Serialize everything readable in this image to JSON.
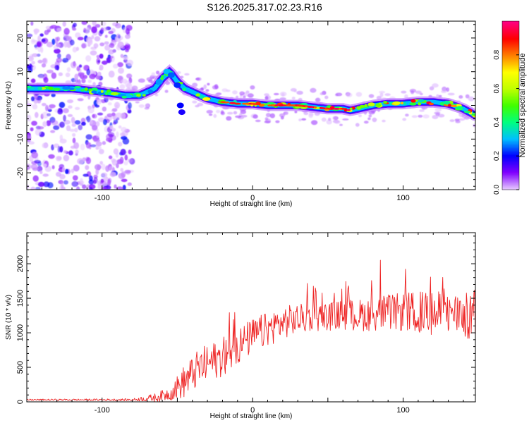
{
  "page_title": "S126.2025.317.02.23.R16",
  "chart_data": [
    {
      "type": "heatmap",
      "title": "S126.2025.317.02.23.R16",
      "xlabel": "Height of straight line (km)",
      "ylabel": "Frequency (Hz)",
      "xlim": [
        -150,
        148
      ],
      "ylim": [
        -25,
        25
      ],
      "xticks": [
        "-100",
        "0",
        "100"
      ],
      "xtick_values": [
        -100,
        0,
        100
      ],
      "yticks": [
        "20",
        "10",
        "0",
        "-10",
        "-20"
      ],
      "ytick_values": [
        20,
        10,
        0,
        -10,
        -20
      ],
      "colorbar": {
        "label": "Normalized spectral amplitude",
        "ticks": [
          "0.0",
          "0.2",
          "0.4",
          "0.6",
          "0.8"
        ],
        "tick_values": [
          0.0,
          0.2,
          0.4,
          0.6,
          0.8
        ],
        "range": [
          0,
          1
        ],
        "colormap": [
          "#e6c8ff",
          "#8000ff",
          "#0000ff",
          "#00bfff",
          "#00ff80",
          "#40ff00",
          "#c0ff00",
          "#ffff00",
          "#ff8000",
          "#ff0000",
          "#ff0080"
        ]
      },
      "ridge": {
        "x": [
          -150,
          -120,
          -100,
          -85,
          -75,
          -65,
          -60,
          -55,
          -50,
          -45,
          -40,
          -35,
          -30,
          -20,
          -10,
          0,
          10,
          20,
          30,
          40,
          50,
          60,
          65,
          70,
          80,
          90,
          100,
          110,
          120,
          130,
          140,
          148
        ],
        "freq": [
          5,
          5,
          4,
          3,
          3,
          5,
          8,
          10,
          7,
          5,
          4,
          3,
          2,
          1,
          0.5,
          0.5,
          0,
          0,
          0,
          -0.5,
          -1,
          -1,
          -1.5,
          -1,
          0,
          0.5,
          0.5,
          1,
          1,
          0.5,
          -1,
          -3
        ]
      },
      "noise_region_x": [
        -150,
        -80
      ]
    },
    {
      "type": "line",
      "xlabel": "Height of straight line (km)",
      "ylabel": "SNR (10 * v/v)",
      "xlim": [
        -150,
        148
      ],
      "ylim": [
        0,
        2450
      ],
      "xticks": [
        "-100",
        "0",
        "100"
      ],
      "xtick_values": [
        -100,
        0,
        100
      ],
      "yticks": [
        "0",
        "500",
        "1000",
        "1500",
        "2000"
      ],
      "ytick_values": [
        0,
        500,
        1000,
        1500,
        2000
      ],
      "color": "#ee2222",
      "trend": {
        "x": [
          -150,
          -80,
          -65,
          -55,
          -45,
          -35,
          -20,
          -10,
          0,
          10,
          20,
          30,
          40,
          50,
          60,
          70,
          80,
          90,
          100,
          110,
          120,
          130,
          140,
          148
        ],
        "y": [
          30,
          30,
          60,
          120,
          300,
          500,
          650,
          800,
          950,
          1050,
          1150,
          1200,
          1220,
          1240,
          1260,
          1250,
          1280,
          1290,
          1300,
          1300,
          1280,
          1270,
          1250,
          1240
        ]
      },
      "noise_amplitude": {
        "x": [
          -150,
          -80,
          -65,
          -55,
          -45,
          -35,
          -20,
          0,
          20,
          40,
          60,
          80,
          100,
          120,
          148
        ],
        "y": [
          10,
          15,
          60,
          100,
          250,
          280,
          280,
          260,
          240,
          200,
          220,
          250,
          280,
          320,
          350
        ]
      }
    }
  ]
}
